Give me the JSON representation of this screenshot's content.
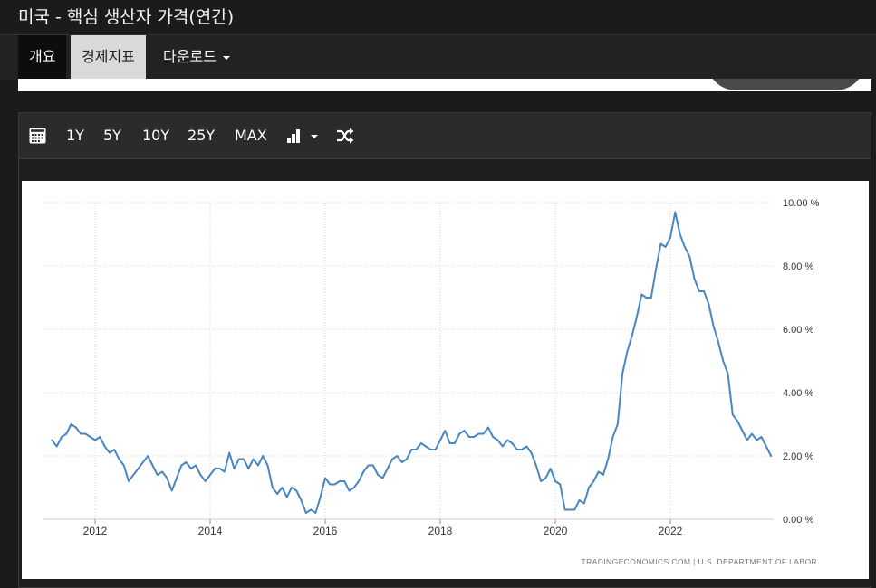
{
  "page_title": "미국 - 핵심 생산자 가격(연간)",
  "tabs": [
    {
      "label": "개요"
    },
    {
      "label": "경제지표"
    },
    {
      "label": "다운로드"
    }
  ],
  "toolbar": {
    "ranges": [
      "1Y",
      "5Y",
      "10Y",
      "25Y",
      "MAX"
    ],
    "icons": [
      "calendar-icon",
      "chart-type-icon",
      "shuffle-icon"
    ]
  },
  "chart_data": {
    "type": "line",
    "ylim": [
      0,
      10
    ],
    "yticks": [
      "10.00 %",
      "8.00 %",
      "6.00 %",
      "4.00 %",
      "2.00 %",
      "0.00 %"
    ],
    "xticks": [
      "2012",
      "2014",
      "2016",
      "2018",
      "2020",
      "2022"
    ],
    "source": "TRADINGECONOMICS.COM  |  U.S. DEPARTMENT OF LABOR",
    "line_color": "#4a86c0",
    "x": [
      "2011-04",
      "2011-05",
      "2011-06",
      "2011-07",
      "2011-08",
      "2011-09",
      "2011-10",
      "2011-11",
      "2011-12",
      "2012-01",
      "2012-02",
      "2012-03",
      "2012-04",
      "2012-05",
      "2012-06",
      "2012-07",
      "2012-08",
      "2012-09",
      "2012-10",
      "2012-11",
      "2012-12",
      "2013-01",
      "2013-02",
      "2013-03",
      "2013-04",
      "2013-05",
      "2013-06",
      "2013-07",
      "2013-08",
      "2013-09",
      "2013-10",
      "2013-11",
      "2013-12",
      "2014-01",
      "2014-02",
      "2014-03",
      "2014-04",
      "2014-05",
      "2014-06",
      "2014-07",
      "2014-08",
      "2014-09",
      "2014-10",
      "2014-11",
      "2014-12",
      "2015-01",
      "2015-02",
      "2015-03",
      "2015-04",
      "2015-05",
      "2015-06",
      "2015-07",
      "2015-08",
      "2015-09",
      "2015-10",
      "2015-11",
      "2015-12",
      "2016-01",
      "2016-02",
      "2016-03",
      "2016-04",
      "2016-05",
      "2016-06",
      "2016-07",
      "2016-08",
      "2016-09",
      "2016-10",
      "2016-11",
      "2016-12",
      "2017-01",
      "2017-02",
      "2017-03",
      "2017-04",
      "2017-05",
      "2017-06",
      "2017-07",
      "2017-08",
      "2017-09",
      "2017-10",
      "2017-11",
      "2017-12",
      "2018-01",
      "2018-02",
      "2018-03",
      "2018-04",
      "2018-05",
      "2018-06",
      "2018-07",
      "2018-08",
      "2018-09",
      "2018-10",
      "2018-11",
      "2018-12",
      "2019-01",
      "2019-02",
      "2019-03",
      "2019-04",
      "2019-05",
      "2019-06",
      "2019-07",
      "2019-08",
      "2019-09",
      "2019-10",
      "2019-11",
      "2019-12",
      "2020-01",
      "2020-02",
      "2020-03",
      "2020-04",
      "2020-05",
      "2020-06",
      "2020-07",
      "2020-08",
      "2020-09",
      "2020-10",
      "2020-11",
      "2020-12",
      "2021-01",
      "2021-02",
      "2021-03",
      "2021-04",
      "2021-05",
      "2021-06",
      "2021-07",
      "2021-08",
      "2021-09",
      "2021-10",
      "2021-11",
      "2021-12",
      "2022-01",
      "2022-02",
      "2022-03",
      "2022-04",
      "2022-05",
      "2022-06",
      "2022-07",
      "2022-08",
      "2022-09",
      "2022-10",
      "2022-11",
      "2022-12",
      "2023-01",
      "2023-02",
      "2023-03",
      "2023-04",
      "2023-05",
      "2023-06",
      "2023-07",
      "2023-08",
      "2023-09",
      "2023-10"
    ],
    "values": [
      2.5,
      2.3,
      2.6,
      2.7,
      3.0,
      2.9,
      2.7,
      2.7,
      2.6,
      2.5,
      2.6,
      2.3,
      2.1,
      2.2,
      1.9,
      1.7,
      1.2,
      1.4,
      1.6,
      1.8,
      2.0,
      1.7,
      1.4,
      1.5,
      1.3,
      0.9,
      1.3,
      1.7,
      1.8,
      1.6,
      1.7,
      1.4,
      1.2,
      1.4,
      1.6,
      1.6,
      1.5,
      2.1,
      1.6,
      1.9,
      1.9,
      1.6,
      1.9,
      1.7,
      2.0,
      1.7,
      1.0,
      0.8,
      1.0,
      0.7,
      1.0,
      0.9,
      0.6,
      0.2,
      0.3,
      0.2,
      0.7,
      1.3,
      1.1,
      1.1,
      1.2,
      1.2,
      0.9,
      1.0,
      1.2,
      1.5,
      1.7,
      1.7,
      1.4,
      1.3,
      1.6,
      1.9,
      2.0,
      1.8,
      1.9,
      2.2,
      2.2,
      2.4,
      2.3,
      2.2,
      2.2,
      2.5,
      2.8,
      2.4,
      2.4,
      2.7,
      2.8,
      2.6,
      2.6,
      2.7,
      2.7,
      2.9,
      2.6,
      2.5,
      2.3,
      2.5,
      2.4,
      2.2,
      2.2,
      2.3,
      2.1,
      1.7,
      1.2,
      1.3,
      1.6,
      1.2,
      1.1,
      0.3,
      0.3,
      0.3,
      0.6,
      0.5,
      1.0,
      1.2,
      1.5,
      1.4,
      1.9,
      2.6,
      3.0,
      4.6,
      5.3,
      5.8,
      6.4,
      7.1,
      7.0,
      7.0,
      7.9,
      8.7,
      8.6,
      8.9,
      9.7,
      9.0,
      8.6,
      8.3,
      7.6,
      7.2,
      7.2,
      6.8,
      6.1,
      5.6,
      5.0,
      4.6,
      3.3,
      3.1,
      2.8,
      2.5,
      2.7,
      2.5,
      2.6,
      2.3,
      2.0
    ]
  }
}
